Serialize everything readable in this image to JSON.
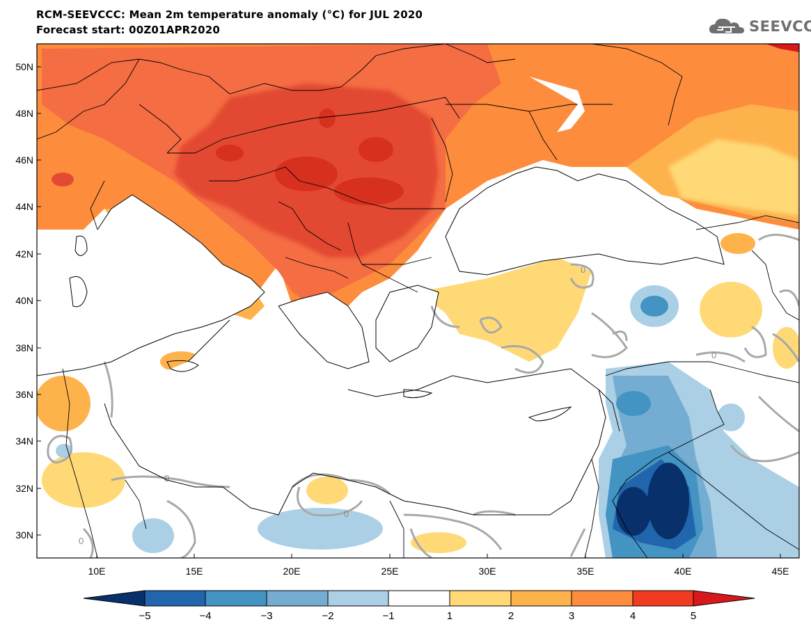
{
  "header": {
    "title": "RCM-SEEVCCC: Mean 2m temperature anomaly (°C) for JUL 2020",
    "subtitle": "Forecast start: 00Z01APR2020"
  },
  "logo": {
    "text": "SEEVCCC",
    "icon": "cloud-logo-icon"
  },
  "map": {
    "lat_labels": [
      "50N",
      "48N",
      "46N",
      "44N",
      "42N",
      "40N",
      "38N",
      "36N",
      "34N",
      "32N",
      "30N"
    ],
    "lon_labels": [
      "10E",
      "15E",
      "20E",
      "25E",
      "30E",
      "35E",
      "40E",
      "45E"
    ],
    "contour_label": "0"
  },
  "colorbar": {
    "ticks": [
      "−5",
      "−4",
      "−3",
      "−2",
      "−1",
      "1",
      "2",
      "3",
      "4",
      "5"
    ],
    "colors": [
      "#08306b",
      "#2166ac",
      "#4393c3",
      "#74add1",
      "#abd0e6",
      "#ffffff",
      "#fed976",
      "#feb24c",
      "#fd8d3c",
      "#f03b20",
      "#d7191c"
    ]
  },
  "palette": {
    "sea": "#ffffff",
    "border": "#000000",
    "contour": "#a0a0a0"
  }
}
